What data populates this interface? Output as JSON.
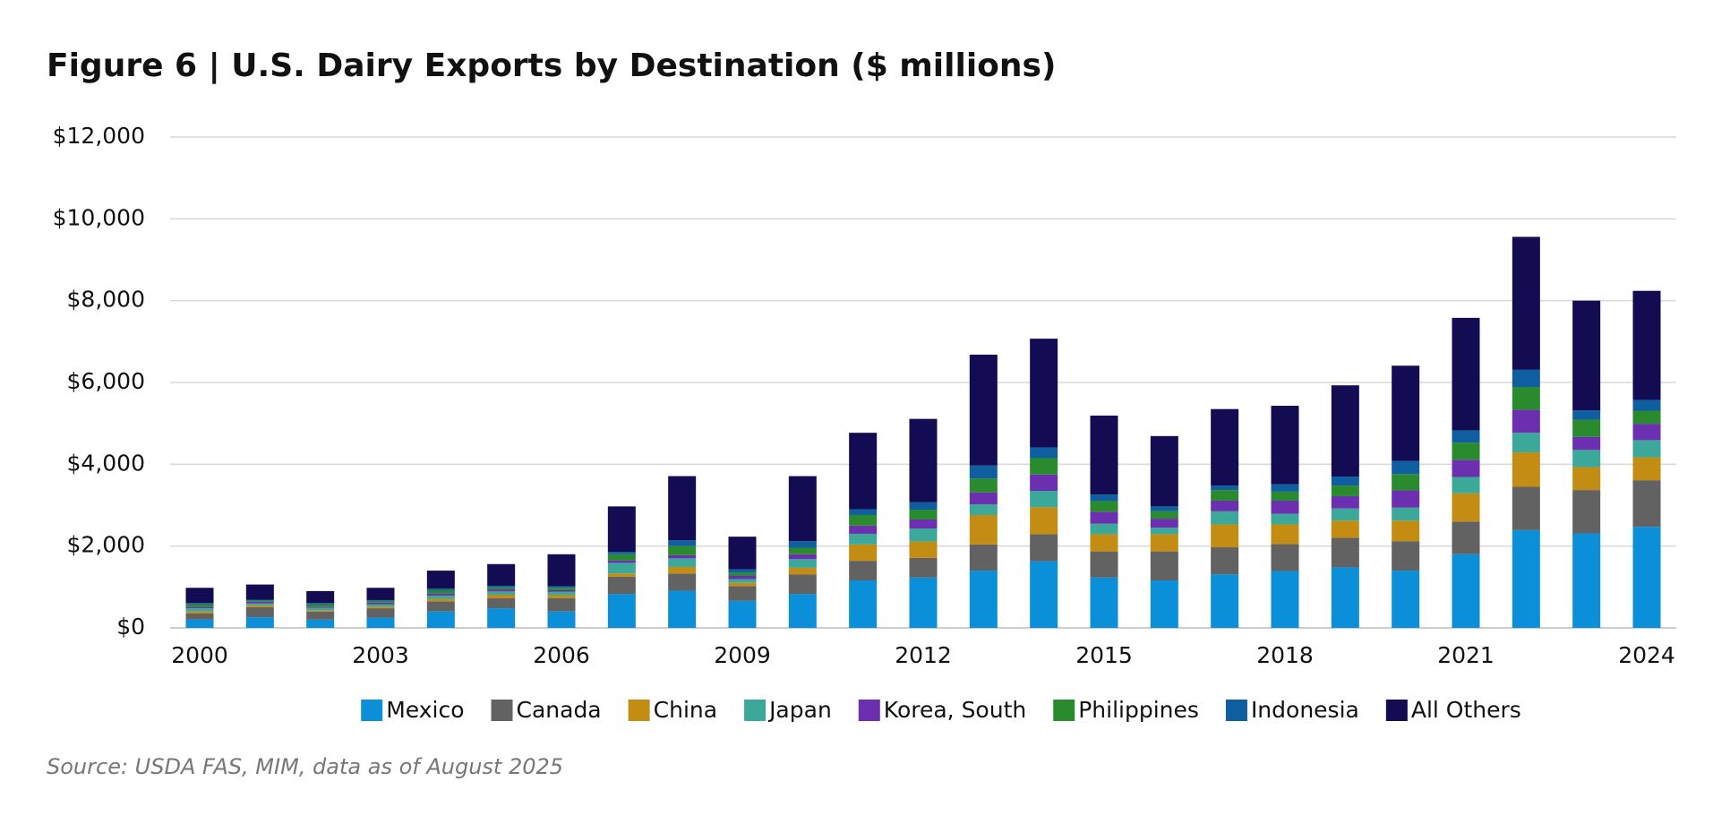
{
  "chart_data": {
    "type": "stacked_bar",
    "title": "Figure 6  |  U.S. Dairy Exports by Destination ($ millions)",
    "source": "Source: USDA FAS, MIM, data as of August 2025",
    "categories": [
      "2000",
      null,
      null,
      "2003",
      null,
      null,
      "2006",
      null,
      null,
      "2009",
      null,
      null,
      "2012",
      null,
      null,
      "2015",
      null,
      null,
      "2018",
      null,
      null,
      "2021",
      null,
      null,
      "2024"
    ],
    "ylim": [
      0,
      12000
    ],
    "yticks": [
      {
        "value": 0,
        "label": "$0"
      },
      {
        "value": 2000,
        "label": "$2,000"
      },
      {
        "value": 4000,
        "label": "$4,000"
      },
      {
        "value": 6000,
        "label": "$6,000"
      },
      {
        "value": 8000,
        "label": "$8,000"
      },
      {
        "value": 10000,
        "label": "$10,000"
      },
      {
        "value": 12000,
        "label": "$12,000"
      }
    ],
    "grid": true,
    "legend": "bottom",
    "series": [
      {
        "name": "Mexico",
        "color": "#0a8fd8",
        "values": [
          200,
          260,
          200,
          250,
          400,
          480,
          400,
          830,
          910,
          660,
          830,
          1160,
          1230,
          1400,
          1630,
          1230,
          1160,
          1310,
          1390,
          1480,
          1400,
          1800,
          2390,
          2310,
          2470
        ]
      },
      {
        "name": "Canada",
        "color": "#626262",
        "values": [
          150,
          250,
          200,
          230,
          250,
          250,
          330,
          420,
          420,
          360,
          480,
          480,
          480,
          640,
          660,
          640,
          710,
          660,
          660,
          720,
          720,
          800,
          1060,
          1060,
          1140
        ]
      },
      {
        "name": "China",
        "color": "#c38c12",
        "values": [
          50,
          40,
          30,
          40,
          60,
          80,
          70,
          80,
          160,
          80,
          160,
          400,
          400,
          720,
          660,
          420,
          420,
          560,
          480,
          420,
          500,
          690,
          840,
          560,
          560
        ]
      },
      {
        "name": "Japan",
        "color": "#3ba89a",
        "values": [
          80,
          50,
          60,
          60,
          80,
          80,
          80,
          260,
          210,
          90,
          210,
          260,
          320,
          260,
          400,
          260,
          160,
          320,
          260,
          300,
          320,
          400,
          480,
          420,
          420
        ]
      },
      {
        "name": "Korea, South",
        "color": "#6b2fb0",
        "values": [
          40,
          40,
          30,
          40,
          50,
          50,
          40,
          60,
          80,
          80,
          120,
          200,
          220,
          290,
          400,
          290,
          220,
          260,
          320,
          300,
          420,
          420,
          560,
          320,
          400
        ]
      },
      {
        "name": "Philippines",
        "color": "#2a8a2e",
        "values": [
          60,
          30,
          60,
          40,
          80,
          50,
          60,
          150,
          220,
          80,
          160,
          260,
          240,
          340,
          400,
          260,
          180,
          260,
          220,
          260,
          400,
          420,
          560,
          420,
          320
        ]
      },
      {
        "name": "Indonesia",
        "color": "#0f5fa0",
        "values": [
          30,
          20,
          30,
          20,
          40,
          40,
          40,
          60,
          140,
          80,
          160,
          140,
          180,
          320,
          260,
          160,
          120,
          110,
          180,
          220,
          320,
          300,
          420,
          230,
          260
        ]
      },
      {
        "name": "All Others",
        "color": "#140c52",
        "values": [
          370,
          370,
          290,
          300,
          440,
          530,
          780,
          1110,
          1570,
          800,
          1590,
          1870,
          2040,
          2710,
          2660,
          1930,
          1720,
          1870,
          1920,
          2230,
          2330,
          2750,
          3250,
          2680,
          2670
        ]
      }
    ]
  }
}
